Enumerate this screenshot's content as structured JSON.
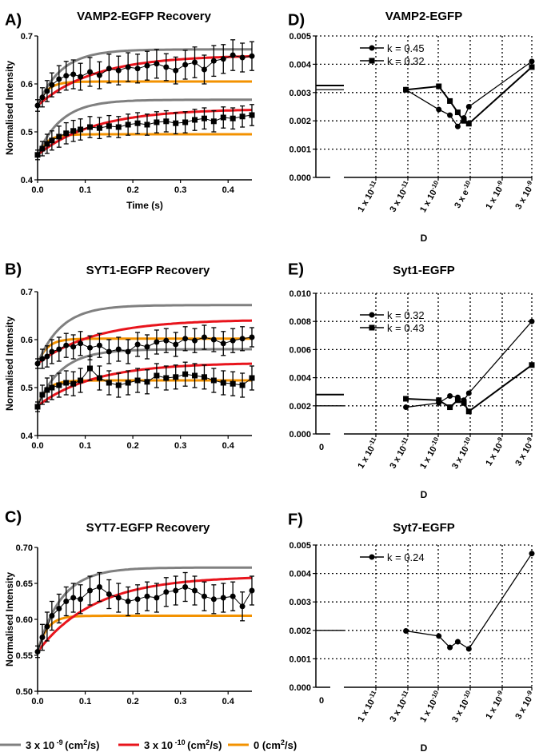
{
  "colors": {
    "gray": "#808080",
    "red": "#e8141c",
    "orange": "#f39200",
    "black": "#000000"
  },
  "bottom_legend": [
    {
      "label": "3 x 10 -9 (cm2/s)",
      "mantissa": "3 x 10",
      "exponent": "-9",
      "unit": "(cm",
      "unit_exp": "2",
      "unit_tail": "/s)",
      "color": "#808080"
    },
    {
      "label": "3 x 10 -10 (cm2/s)",
      "mantissa": "3 x 10",
      "exponent": "-10",
      "unit": "(cm",
      "unit_exp": "2",
      "unit_tail": "/s)",
      "color": "#e8141c"
    },
    {
      "label": "0 (cm2/s)",
      "mantissa": "0",
      "exponent": "",
      "unit": "(cm",
      "unit_exp": "2",
      "unit_tail": "/s)",
      "color": "#f39200"
    }
  ],
  "chart_data": [
    {
      "id": "A",
      "panel_label": "A)",
      "type": "line",
      "title": "VAMP2-EGFP Recovery",
      "xlabel": "Time (s)",
      "ylabel": "Normalised Intensity",
      "xlim": [
        0,
        0.45
      ],
      "ylim": [
        0.4,
        0.7
      ],
      "xticks": [
        0.0,
        0.1,
        0.2,
        0.3,
        0.4
      ],
      "xtick_labels": [
        "0.0",
        "0.1",
        "0.2",
        "0.3",
        "0.4"
      ],
      "yticks": [
        0.4,
        0.5,
        0.6,
        0.7
      ],
      "ytick_labels": [
        "0.4",
        "0.5",
        "0.6",
        "0.7"
      ],
      "model_groups": [
        {
          "start": 0.555,
          "gray": 0.672,
          "red": 0.66,
          "orange": 0.605
        },
        {
          "start": 0.452,
          "gray": 0.567,
          "red": 0.548,
          "orange": 0.495
        }
      ],
      "data_series": [
        {
          "name": "upper (circles)",
          "marker": "circle",
          "x": [
            0,
            0.01,
            0.02,
            0.03,
            0.045,
            0.06,
            0.075,
            0.09,
            0.11,
            0.13,
            0.15,
            0.17,
            0.19,
            0.21,
            0.23,
            0.25,
            0.27,
            0.29,
            0.31,
            0.33,
            0.35,
            0.37,
            0.39,
            0.41,
            0.43,
            0.45
          ],
          "y": [
            0.555,
            0.572,
            0.585,
            0.598,
            0.61,
            0.617,
            0.62,
            0.615,
            0.625,
            0.618,
            0.632,
            0.628,
            0.635,
            0.632,
            0.638,
            0.642,
            0.635,
            0.628,
            0.64,
            0.645,
            0.63,
            0.648,
            0.652,
            0.66,
            0.655,
            0.658
          ],
          "err": [
            0.012,
            0.02,
            0.022,
            0.025,
            0.028,
            0.03,
            0.03,
            0.028,
            0.03,
            0.028,
            0.03,
            0.03,
            0.03,
            0.03,
            0.03,
            0.03,
            0.028,
            0.028,
            0.03,
            0.032,
            0.03,
            0.032,
            0.03,
            0.032,
            0.03,
            0.03
          ]
        },
        {
          "name": "lower (squares)",
          "marker": "square",
          "x": [
            0,
            0.01,
            0.02,
            0.03,
            0.045,
            0.06,
            0.075,
            0.09,
            0.11,
            0.13,
            0.15,
            0.17,
            0.19,
            0.21,
            0.23,
            0.25,
            0.27,
            0.29,
            0.31,
            0.33,
            0.35,
            0.37,
            0.39,
            0.41,
            0.43,
            0.45
          ],
          "y": [
            0.452,
            0.465,
            0.475,
            0.482,
            0.49,
            0.497,
            0.502,
            0.505,
            0.51,
            0.508,
            0.512,
            0.51,
            0.515,
            0.518,
            0.515,
            0.52,
            0.522,
            0.518,
            0.52,
            0.525,
            0.528,
            0.522,
            0.53,
            0.528,
            0.532,
            0.535
          ],
          "err": [
            0.01,
            0.015,
            0.02,
            0.02,
            0.022,
            0.022,
            0.022,
            0.022,
            0.022,
            0.022,
            0.022,
            0.022,
            0.022,
            0.022,
            0.022,
            0.022,
            0.022,
            0.022,
            0.022,
            0.022,
            0.022,
            0.022,
            0.022,
            0.022,
            0.022,
            0.022
          ]
        }
      ]
    },
    {
      "id": "B",
      "panel_label": "B)",
      "type": "line",
      "title": "SYT1-EGFP Recovery",
      "xlabel": "",
      "ylabel": "Normalised Intensity",
      "xlim": [
        0,
        0.45
      ],
      "ylim": [
        0.4,
        0.7
      ],
      "xticks": [
        0.0,
        0.1,
        0.2,
        0.3,
        0.4
      ],
      "xtick_labels": [
        "0.0",
        "0.1",
        "0.2",
        "0.3",
        "0.4"
      ],
      "yticks": [
        0.4,
        0.5,
        0.6,
        0.7
      ],
      "ytick_labels": [
        "0.4",
        "0.5",
        "0.6",
        "0.7"
      ],
      "model_groups": [
        {
          "start": 0.55,
          "gray": 0.672,
          "red": 0.642,
          "orange": 0.602
        },
        {
          "start": 0.462,
          "gray": 0.58,
          "red": 0.552,
          "orange": 0.515
        }
      ],
      "data_series": [
        {
          "name": "upper (circles)",
          "marker": "circle",
          "x": [
            0,
            0.01,
            0.02,
            0.03,
            0.045,
            0.06,
            0.075,
            0.09,
            0.11,
            0.13,
            0.15,
            0.17,
            0.19,
            0.21,
            0.23,
            0.25,
            0.27,
            0.29,
            0.31,
            0.33,
            0.35,
            0.37,
            0.39,
            0.41,
            0.43,
            0.45
          ],
          "y": [
            0.55,
            0.56,
            0.565,
            0.575,
            0.58,
            0.588,
            0.585,
            0.592,
            0.583,
            0.588,
            0.575,
            0.58,
            0.575,
            0.59,
            0.585,
            0.595,
            0.598,
            0.59,
            0.602,
            0.598,
            0.605,
            0.6,
            0.592,
            0.598,
            0.602,
            0.605
          ],
          "err": [
            0.01,
            0.02,
            0.022,
            0.025,
            0.025,
            0.025,
            0.025,
            0.025,
            0.025,
            0.025,
            0.025,
            0.025,
            0.025,
            0.025,
            0.025,
            0.025,
            0.025,
            0.025,
            0.025,
            0.025,
            0.025,
            0.025,
            0.025,
            0.025,
            0.025,
            0.02
          ]
        },
        {
          "name": "lower (squares)",
          "marker": "square",
          "x": [
            0,
            0.01,
            0.02,
            0.03,
            0.045,
            0.06,
            0.075,
            0.09,
            0.11,
            0.13,
            0.15,
            0.17,
            0.19,
            0.21,
            0.23,
            0.25,
            0.27,
            0.29,
            0.31,
            0.33,
            0.35,
            0.37,
            0.39,
            0.41,
            0.43,
            0.45
          ],
          "y": [
            0.46,
            0.485,
            0.495,
            0.5,
            0.505,
            0.51,
            0.508,
            0.515,
            0.54,
            0.52,
            0.51,
            0.505,
            0.51,
            0.515,
            0.512,
            0.525,
            0.52,
            0.522,
            0.528,
            0.525,
            0.522,
            0.515,
            0.51,
            0.508,
            0.505,
            0.52
          ],
          "err": [
            0.01,
            0.02,
            0.025,
            0.025,
            0.025,
            0.025,
            0.025,
            0.025,
            0.025,
            0.025,
            0.025,
            0.025,
            0.025,
            0.025,
            0.025,
            0.025,
            0.025,
            0.025,
            0.025,
            0.025,
            0.025,
            0.025,
            0.025,
            0.025,
            0.025,
            0.025
          ]
        }
      ]
    },
    {
      "id": "C",
      "panel_label": "C)",
      "type": "line",
      "title": "SYT7-EGFP Recovery",
      "xlabel": "",
      "ylabel": "Normalised Intensity",
      "xlim": [
        0,
        0.45
      ],
      "ylim": [
        0.5,
        0.7
      ],
      "xticks": [
        0.0,
        0.1,
        0.2,
        0.3,
        0.4
      ],
      "xtick_labels": [
        "0.0",
        "0.1",
        "0.2",
        "0.3",
        "0.4"
      ],
      "yticks": [
        0.5,
        0.55,
        0.6,
        0.65,
        0.7
      ],
      "ytick_labels": [
        "0.50",
        "0.55",
        "0.60",
        "0.65",
        "0.70"
      ],
      "model_groups": [
        {
          "start": 0.555,
          "gray": 0.672,
          "red": 0.66,
          "orange": 0.605
        }
      ],
      "data_series": [
        {
          "name": "data (circles)",
          "marker": "circle",
          "x": [
            0,
            0.01,
            0.02,
            0.03,
            0.045,
            0.06,
            0.075,
            0.09,
            0.11,
            0.13,
            0.15,
            0.17,
            0.19,
            0.21,
            0.23,
            0.25,
            0.27,
            0.29,
            0.31,
            0.33,
            0.35,
            0.37,
            0.39,
            0.41,
            0.43,
            0.45
          ],
          "y": [
            0.555,
            0.575,
            0.59,
            0.605,
            0.615,
            0.625,
            0.63,
            0.628,
            0.64,
            0.645,
            0.635,
            0.63,
            0.625,
            0.628,
            0.632,
            0.63,
            0.638,
            0.64,
            0.645,
            0.64,
            0.632,
            0.628,
            0.63,
            0.632,
            0.618,
            0.64
          ],
          "err": [
            0.008,
            0.018,
            0.02,
            0.02,
            0.02,
            0.02,
            0.02,
            0.02,
            0.02,
            0.02,
            0.02,
            0.02,
            0.02,
            0.02,
            0.02,
            0.02,
            0.02,
            0.02,
            0.02,
            0.02,
            0.02,
            0.02,
            0.02,
            0.02,
            0.02,
            0.02
          ]
        }
      ]
    },
    {
      "id": "D",
      "panel_label": "D)",
      "type": "line",
      "title": "VAMP2-EGFP",
      "xlabel": "D",
      "ylabel": "",
      "ylim": [
        0,
        0.005
      ],
      "yticks": [
        0,
        0.001,
        0.002,
        0.003,
        0.004,
        0.005
      ],
      "ytick_labels": [
        "0.000",
        "0.001",
        "0.002",
        "0.003",
        "0.004",
        "0.005"
      ],
      "xtick_labels": [
        {
          "m": "1 x 10",
          "e": "-11"
        },
        {
          "m": "3 x 10",
          "e": "-11"
        },
        {
          "m": "1 x 10",
          "e": "-10"
        },
        {
          "m": "3 x e",
          "e": "-10"
        },
        {
          "m": "1 x 10",
          "e": "-9"
        },
        {
          "m": "3 x 10",
          "e": "-9"
        }
      ],
      "zero_label": "",
      "series": [
        {
          "name": "k = 0.45",
          "marker": "circle",
          "zero_value": 0.0031,
          "x": [
            1e-11,
            3e-11,
            1e-10,
            1.5e-10,
            2e-10,
            2.5e-10,
            3e-10,
            3e-09
          ],
          "y": [
            null,
            0.0031,
            0.0024,
            0.0022,
            0.0018,
            0.0021,
            0.0025,
            0.0041
          ]
        },
        {
          "name": "k = 0.32",
          "marker": "square",
          "zero_value": 0.00325,
          "x": [
            1e-11,
            3e-11,
            1e-10,
            1.5e-10,
            2e-10,
            2.5e-10,
            3e-10,
            3e-09
          ],
          "y": [
            null,
            0.0031,
            0.00322,
            0.0027,
            0.0023,
            0.002,
            0.0019,
            0.0039
          ]
        }
      ]
    },
    {
      "id": "E",
      "panel_label": "E)",
      "type": "line",
      "title": "Syt1-EGFP",
      "xlabel": "D",
      "ylabel": "",
      "ylim": [
        0,
        0.01
      ],
      "yticks": [
        0,
        0.002,
        0.004,
        0.006,
        0.008,
        0.01
      ],
      "ytick_labels": [
        "0.000",
        "0.002",
        "0.004",
        "0.006",
        "0.008",
        "0.010"
      ],
      "xtick_labels": [
        {
          "m": "1 x 10",
          "e": "-11"
        },
        {
          "m": "3 x 10",
          "e": "-11"
        },
        {
          "m": "1 x 10",
          "e": "-10"
        },
        {
          "m": "3 x 10",
          "e": "-10"
        },
        {
          "m": "1 x 10",
          "e": "-9"
        },
        {
          "m": "3 x 10",
          "e": "-9"
        }
      ],
      "zero_label": "0",
      "series": [
        {
          "name": "k = 0.32",
          "marker": "circle",
          "zero_value": 0.002,
          "x": [
            3e-11,
            1e-10,
            1.5e-10,
            2e-10,
            2.5e-10,
            3e-10,
            3e-09
          ],
          "y": [
            0.0019,
            0.0022,
            0.0027,
            0.0026,
            0.0024,
            0.0029,
            0.008
          ]
        },
        {
          "name": "k = 0.43",
          "marker": "square",
          "zero_value": 0.0028,
          "x": [
            3e-11,
            1e-10,
            1.5e-10,
            2e-10,
            2.5e-10,
            3e-10,
            3e-09
          ],
          "y": [
            0.0025,
            0.0024,
            0.0019,
            0.0024,
            0.0022,
            0.0016,
            0.0049
          ]
        }
      ]
    },
    {
      "id": "F",
      "panel_label": "F)",
      "type": "line",
      "title": "Syt7-EGFP",
      "xlabel": "D",
      "ylabel": "",
      "ylim": [
        0,
        0.005
      ],
      "yticks": [
        0,
        0.001,
        0.002,
        0.003,
        0.004,
        0.005
      ],
      "ytick_labels": [
        "0.000",
        "0.001",
        "0.002",
        "0.003",
        "0.004",
        "0.005"
      ],
      "xtick_labels": [
        {
          "m": "1 x 10",
          "e": "-11"
        },
        {
          "m": "3 x 10",
          "e": "-11"
        },
        {
          "m": "1 x 10",
          "e": "-10"
        },
        {
          "m": "3 x 10",
          "e": "-10"
        },
        {
          "m": "1 x 10",
          "e": "-9"
        },
        {
          "m": "3 x 10",
          "e": "-9"
        }
      ],
      "zero_label": "0",
      "series": [
        {
          "name": "k = 0.24",
          "marker": "circle",
          "zero_value": 0.002,
          "x": [
            3e-11,
            1e-10,
            1.5e-10,
            2e-10,
            3e-10,
            3e-09
          ],
          "y": [
            0.00198,
            0.0018,
            0.0014,
            0.0016,
            0.00135,
            0.0047
          ]
        }
      ]
    }
  ]
}
